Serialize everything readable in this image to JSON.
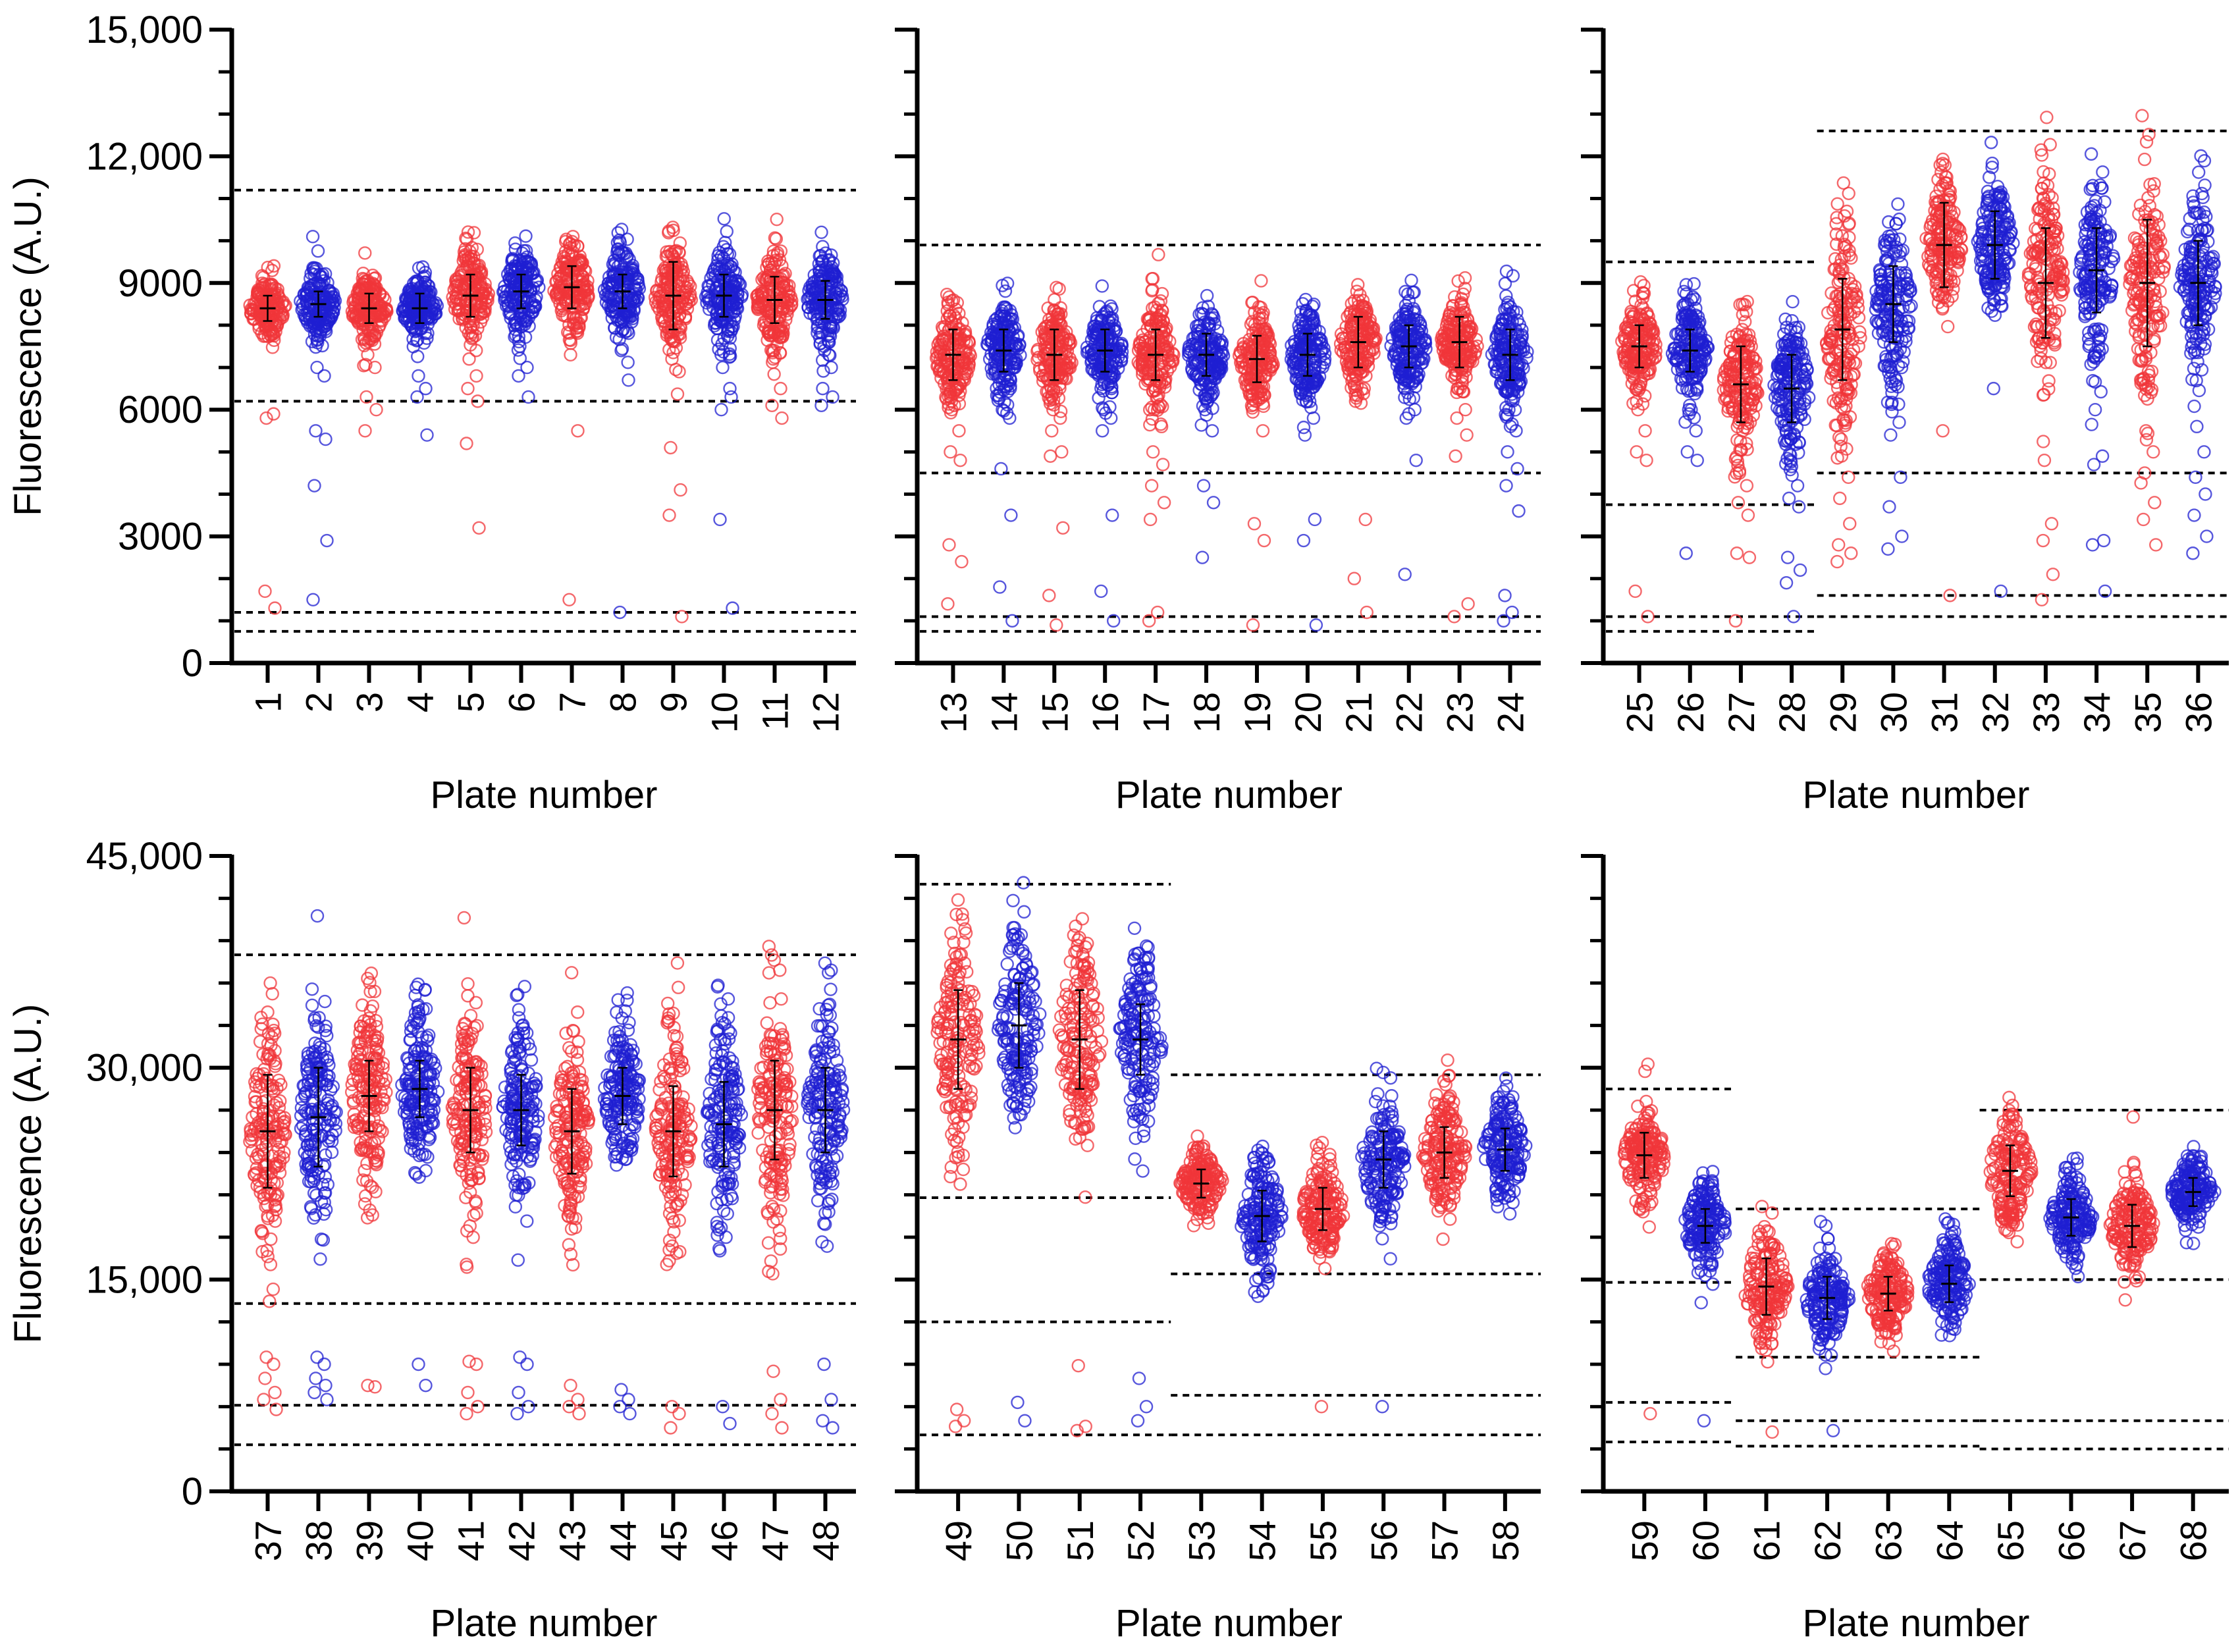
{
  "figure": {
    "colors": {
      "red": "#f0363a",
      "blue": "#1f1fd2",
      "axis": "#000000",
      "threshold": "#000000",
      "summary": "#000000"
    }
  },
  "chart_data": [
    {
      "type": "scatter",
      "panel": "top-left",
      "title": "",
      "xlabel": "Plate number",
      "ylabel": "Fluorescence (A.U.)",
      "ylim": [
        0,
        15000
      ],
      "yticks": [
        0,
        3000,
        6000,
        9000,
        12000,
        15000
      ],
      "ytick_labels": [
        "0",
        "3000",
        "6000",
        "9000",
        "12,000",
        "15,000"
      ],
      "categories": [
        "1",
        "2",
        "3",
        "4",
        "5",
        "6",
        "7",
        "8",
        "9",
        "10",
        "11",
        "12"
      ],
      "category_colors": [
        "red",
        "blue",
        "red",
        "blue",
        "red",
        "blue",
        "red",
        "blue",
        "red",
        "blue",
        "red",
        "blue"
      ],
      "median": [
        8400,
        8500,
        8400,
        8400,
        8700,
        8800,
        8900,
        8800,
        8700,
        8700,
        8600,
        8600
      ],
      "sd": [
        300,
        300,
        350,
        350,
        500,
        400,
        500,
        400,
        800,
        500,
        550,
        450
      ],
      "spread": [
        380,
        420,
        400,
        400,
        560,
        560,
        560,
        560,
        620,
        560,
        560,
        560
      ],
      "outliers": [
        [
          5800,
          5900,
          1700,
          1300
        ],
        [
          7000,
          6800,
          5500,
          5300,
          4200,
          2900,
          1500
        ],
        [
          7300,
          7000,
          6300,
          6000,
          5500
        ],
        [
          6800,
          6500,
          6300,
          5400
        ],
        [
          7200,
          6800,
          6500,
          6200,
          5200,
          3200
        ],
        [
          7500,
          7000,
          6800,
          6300
        ],
        [
          7300,
          5500,
          1500
        ],
        [
          7400,
          6700,
          1200
        ],
        [
          7200,
          6900,
          5100,
          4100,
          3500,
          1100
        ],
        [
          7000,
          6500,
          6000,
          6300,
          3400,
          1300
        ],
        [
          7200,
          6500,
          6100,
          5800
        ],
        [
          7500,
          7000,
          6500,
          6300,
          6100
        ]
      ],
      "thresholds": [
        {
          "y": 11200,
          "from": 1,
          "to": 12
        },
        {
          "y": 6200,
          "from": 1,
          "to": 12
        },
        {
          "y": 1200,
          "from": 1,
          "to": 12
        },
        {
          "y": 750,
          "from": 1,
          "to": 12
        }
      ]
    },
    {
      "type": "scatter",
      "panel": "top-middle",
      "title": "",
      "xlabel": "Plate number",
      "ylabel": "",
      "ylim": [
        0,
        15000
      ],
      "yticks": [
        0,
        3000,
        6000,
        9000,
        12000,
        15000
      ],
      "ytick_labels": [],
      "categories": [
        "13",
        "14",
        "15",
        "16",
        "17",
        "18",
        "19",
        "20",
        "21",
        "22",
        "23",
        "24"
      ],
      "category_colors": [
        "red",
        "blue",
        "red",
        "blue",
        "red",
        "blue",
        "red",
        "blue",
        "red",
        "blue",
        "red",
        "blue"
      ],
      "median": [
        7300,
        7400,
        7300,
        7400,
        7300,
        7300,
        7200,
        7300,
        7600,
        7500,
        7600,
        7300
      ],
      "sd": [
        600,
        500,
        600,
        500,
        600,
        500,
        550,
        500,
        600,
        500,
        600,
        600
      ],
      "spread": [
        620,
        560,
        620,
        560,
        620,
        560,
        560,
        560,
        560,
        560,
        560,
        620
      ],
      "outliers": [
        [
          6000,
          5500,
          5000,
          4800,
          2800,
          2400,
          1400
        ],
        [
          6000,
          5800,
          4600,
          3500,
          1800,
          1000
        ],
        [
          6000,
          5800,
          5500,
          5000,
          4900,
          3200,
          1600,
          900
        ],
        [
          6000,
          5800,
          5500,
          3500,
          1700,
          1000
        ],
        [
          6000,
          5600,
          5000,
          4700,
          4200,
          3800,
          3400,
          1200,
          1000
        ],
        [
          6000,
          5500,
          4200,
          3800,
          2500
        ],
        [
          6200,
          5500,
          3300,
          2900,
          900
        ],
        [
          6200,
          5800,
          5400,
          3400,
          2900,
          900
        ],
        [
          8800,
          6500,
          6200,
          3400,
          2000,
          1200
        ],
        [
          6400,
          6000,
          5800,
          4800,
          2100
        ],
        [
          6500,
          6000,
          5800,
          5400,
          4900,
          1400,
          1100
        ],
        [
          6000,
          5500,
          5000,
          4600,
          4200,
          3600,
          1600,
          1200,
          1000
        ]
      ],
      "thresholds": [
        {
          "y": 9900,
          "from": 13,
          "to": 24
        },
        {
          "y": 4500,
          "from": 13,
          "to": 24
        },
        {
          "y": 1100,
          "from": 13,
          "to": 24
        },
        {
          "y": 750,
          "from": 13,
          "to": 24
        }
      ]
    },
    {
      "type": "scatter",
      "panel": "top-right",
      "title": "",
      "xlabel": "Plate number",
      "ylabel": "",
      "ylim": [
        0,
        15000
      ],
      "yticks": [
        0,
        3000,
        6000,
        9000,
        12000,
        15000
      ],
      "ytick_labels": [],
      "categories": [
        "25",
        "26",
        "27",
        "28",
        "29",
        "30",
        "31",
        "32",
        "33",
        "34",
        "35",
        "36"
      ],
      "category_colors": [
        "red",
        "blue",
        "red",
        "blue",
        "red",
        "blue",
        "red",
        "blue",
        "red",
        "blue",
        "red",
        "blue"
      ],
      "median": [
        7500,
        7400,
        6600,
        6500,
        7900,
        8500,
        9900,
        9900,
        9000,
        9300,
        9000,
        9000
      ],
      "sd": [
        500,
        500,
        900,
        800,
        1200,
        900,
        1000,
        800,
        1300,
        1000,
        1500,
        1000
      ],
      "spread": [
        560,
        560,
        850,
        850,
        1300,
        1100,
        800,
        800,
        1250,
        1100,
        1400,
        1100
      ],
      "outliers": [
        [
          6000,
          5500,
          5000,
          4800,
          1700,
          1100
        ],
        [
          6000,
          5500,
          5000,
          4800,
          2600
        ],
        [
          4500,
          4200,
          3800,
          3500,
          2600,
          2500,
          1000
        ],
        [
          4800,
          4200,
          3900,
          3700,
          2500,
          2200,
          1900,
          1100
        ],
        [
          5300,
          4400,
          3900,
          3300,
          2800,
          2600,
          2400
        ],
        [
          6400,
          5700,
          5400,
          4400,
          3700,
          3000,
          2700
        ],
        [
          5500,
          1600
        ],
        [
          6500,
          1700
        ],
        [
          4800,
          3300,
          2900,
          2100,
          1500
        ],
        [
          6000,
          4900,
          4700,
          2900,
          2800,
          1700
        ],
        [
          5500,
          5000,
          4500,
          3800,
          3400,
          2800
        ],
        [
          5600,
          5000,
          4400,
          4000,
          3500,
          3000,
          2600
        ]
      ],
      "thresholds": [
        {
          "y": 9500,
          "from": 25,
          "to": 28
        },
        {
          "y": 3750,
          "from": 25,
          "to": 28
        },
        {
          "y": 1100,
          "from": 25,
          "to": 28
        },
        {
          "y": 750,
          "from": 25,
          "to": 28
        },
        {
          "y": 12600,
          "from": 29,
          "to": 36
        },
        {
          "y": 4500,
          "from": 29,
          "to": 36
        },
        {
          "y": 1600,
          "from": 29,
          "to": 36
        },
        {
          "y": 1100,
          "from": 29,
          "to": 36
        }
      ]
    },
    {
      "type": "scatter",
      "panel": "bottom-left",
      "title": "",
      "xlabel": "Plate number",
      "ylabel": "Fluorescence (A.U.)",
      "ylim": [
        0,
        45000
      ],
      "yticks": [
        0,
        15000,
        30000,
        45000
      ],
      "ytick_labels": [
        "0",
        "15,000",
        "30,000",
        "45,000"
      ],
      "categories": [
        "37",
        "38",
        "39",
        "40",
        "41",
        "42",
        "43",
        "44",
        "45",
        "46",
        "47",
        "48"
      ],
      "category_colors": [
        "red",
        "blue",
        "red",
        "blue",
        "red",
        "blue",
        "red",
        "blue",
        "red",
        "blue",
        "red",
        "blue"
      ],
      "median": [
        25500,
        26500,
        28000,
        28500,
        27000,
        27000,
        25500,
        28000,
        25500,
        26000,
        27000,
        27000
      ],
      "sd": [
        4000,
        3500,
        2500,
        2000,
        3000,
        2500,
        3000,
        2000,
        3200,
        3000,
        3500,
        3000
      ],
      "spread": [
        4000,
        4000,
        3500,
        3200,
        3600,
        3400,
        3400,
        3000,
        4000,
        3800,
        4200,
        3800
      ],
      "outliers": [
        [
          9500,
          9000,
          8000,
          7000,
          6500,
          5800
        ],
        [
          9500,
          9000,
          8000,
          7500,
          7000,
          6500
        ],
        [
          7500,
          7400
        ],
        [
          9000,
          7500
        ],
        [
          9200,
          9000,
          7000,
          6000,
          5500
        ],
        [
          9500,
          9000,
          7000,
          6000,
          5500
        ],
        [
          7500,
          6500,
          6000,
          5500
        ],
        [
          7200,
          6500,
          6000,
          5500
        ],
        [
          6000,
          5500,
          4500
        ],
        [
          6000,
          4800
        ],
        [
          8500,
          6500,
          5500,
          4500
        ],
        [
          9000,
          6500,
          5000,
          4500
        ]
      ],
      "thresholds": [
        {
          "y": 38000,
          "from": 37,
          "to": 48
        },
        {
          "y": 13300,
          "from": 37,
          "to": 48
        },
        {
          "y": 6100,
          "from": 37,
          "to": 48
        },
        {
          "y": 3300,
          "from": 37,
          "to": 48
        }
      ]
    },
    {
      "type": "scatter",
      "panel": "bottom-middle",
      "title": "",
      "xlabel": "Plate number",
      "ylabel": "",
      "ylim": [
        0,
        45000
      ],
      "yticks": [
        0,
        15000,
        30000,
        45000
      ],
      "ytick_labels": [],
      "categories": [
        "49",
        "50",
        "51",
        "52",
        "53",
        "54",
        "55",
        "56",
        "57",
        "58"
      ],
      "category_colors": [
        "red",
        "blue",
        "red",
        "blue",
        "red",
        "blue",
        "red",
        "blue",
        "red",
        "blue"
      ],
      "median": [
        32000,
        33000,
        32000,
        32000,
        21800,
        19500,
        20000,
        23500,
        24000,
        24200
      ],
      "sd": [
        3500,
        3000,
        3500,
        2500,
        1000,
        1800,
        1500,
        2000,
        1800,
        1500
      ],
      "spread": [
        4000,
        3600,
        3800,
        3200,
        1200,
        2200,
        1800,
        2600,
        2200,
        1800
      ],
      "outliers": [
        [
          5800,
          5000,
          4600
        ],
        [
          6300,
          5000
        ],
        [
          8900,
          4600,
          4300
        ],
        [
          8000,
          6000,
          5000
        ],
        [],
        [],
        [
          6000
        ],
        [
          6000
        ],
        [],
        []
      ],
      "thresholds": [
        {
          "y": 43000,
          "from": 49,
          "to": 52
        },
        {
          "y": 20800,
          "from": 49,
          "to": 52
        },
        {
          "y": 12000,
          "from": 49,
          "to": 52
        },
        {
          "y": 4000,
          "from": 49,
          "to": 52
        },
        {
          "y": 29500,
          "from": 53,
          "to": 58
        },
        {
          "y": 15400,
          "from": 53,
          "to": 58
        },
        {
          "y": 6800,
          "from": 53,
          "to": 58
        },
        {
          "y": 4000,
          "from": 53,
          "to": 58
        }
      ]
    },
    {
      "type": "scatter",
      "panel": "bottom-right",
      "title": "",
      "xlabel": "Plate number",
      "ylabel": "",
      "ylim": [
        0,
        45000
      ],
      "yticks": [
        0,
        15000,
        30000,
        45000
      ],
      "ytick_labels": [],
      "categories": [
        "59",
        "60",
        "61",
        "62",
        "63",
        "64",
        "65",
        "66",
        "67",
        "68"
      ],
      "category_colors": [
        "red",
        "blue",
        "red",
        "blue",
        "red",
        "blue",
        "red",
        "blue",
        "red",
        "blue"
      ],
      "median": [
        23800,
        18800,
        14500,
        13700,
        14000,
        14700,
        22700,
        19400,
        18800,
        21200
      ],
      "sd": [
        1600,
        1200,
        2000,
        1500,
        1200,
        1300,
        1800,
        1300,
        1500,
        1000
      ],
      "spread": [
        1800,
        1600,
        2200,
        1700,
        1500,
        1600,
        2000,
        1500,
        1800,
        1300
      ],
      "outliers": [
        [
          19800,
          5500
        ],
        [
          5000
        ],
        [
          10500,
          4200
        ],
        [
          18800,
          4300
        ],
        [],
        [],
        [],
        [],
        [],
        []
      ],
      "thresholds": [
        {
          "y": 28500,
          "from": 59,
          "to": 60
        },
        {
          "y": 14800,
          "from": 59,
          "to": 60
        },
        {
          "y": 6300,
          "from": 59,
          "to": 60
        },
        {
          "y": 3500,
          "from": 59,
          "to": 60
        },
        {
          "y": 20000,
          "from": 61,
          "to": 64
        },
        {
          "y": 9500,
          "from": 61,
          "to": 64
        },
        {
          "y": 5000,
          "from": 61,
          "to": 64
        },
        {
          "y": 3200,
          "from": 61,
          "to": 64
        },
        {
          "y": 27000,
          "from": 65,
          "to": 68
        },
        {
          "y": 15000,
          "from": 65,
          "to": 68
        },
        {
          "y": 5000,
          "from": 65,
          "to": 68
        },
        {
          "y": 3000,
          "from": 65,
          "to": 68
        }
      ]
    }
  ]
}
